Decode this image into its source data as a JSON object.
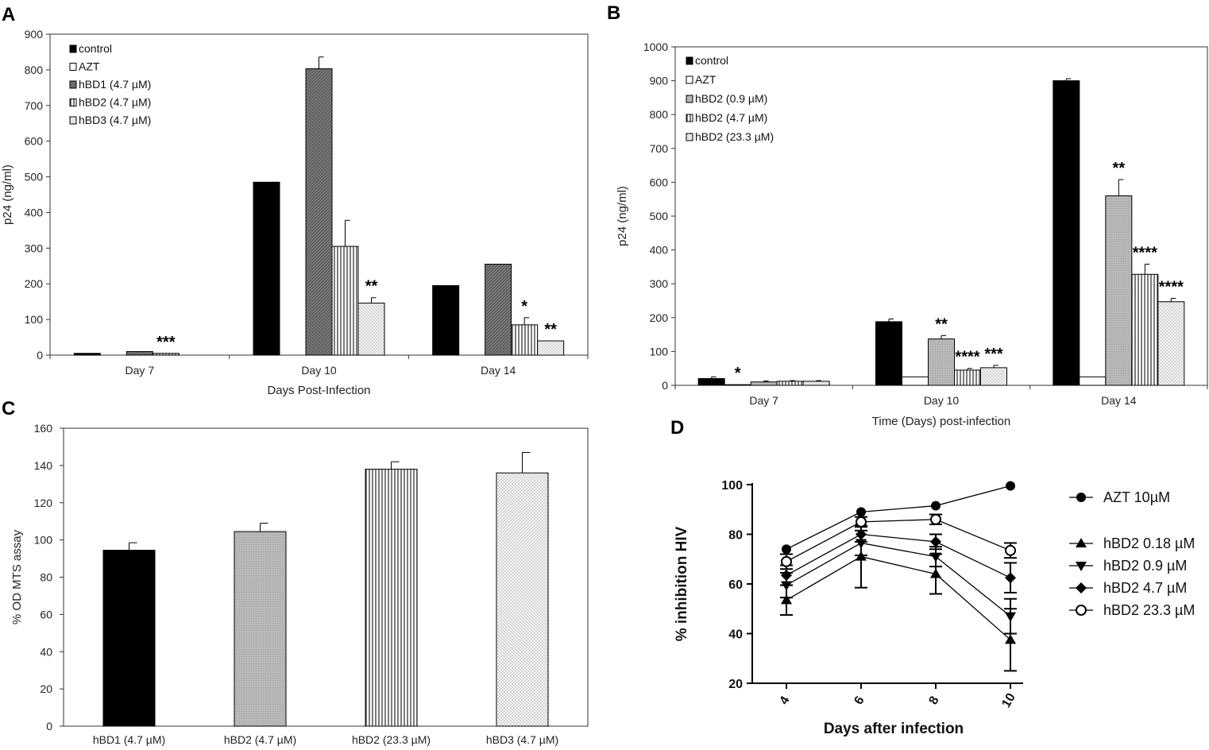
{
  "panels": {
    "A": "A",
    "B": "B",
    "C": "C",
    "D": "D"
  },
  "chart_data": [
    {
      "id": "A",
      "type": "bar",
      "title": "",
      "xlabel": "Days Post-Infection",
      "ylabel": "p24 (ng/ml)",
      "ylim": [
        0,
        900
      ],
      "yticks": [
        0,
        100,
        200,
        300,
        400,
        500,
        600,
        700,
        800,
        900
      ],
      "categories": [
        "Day 7",
        "Day 10",
        "Day 14"
      ],
      "series": [
        {
          "name": "control",
          "values": [
            5,
            485,
            195
          ],
          "errors": [
            0,
            0,
            0
          ],
          "sig": [
            "",
            "",
            ""
          ],
          "pattern": "black"
        },
        {
          "name": "AZT",
          "values": [
            0,
            0,
            0
          ],
          "errors": [
            0,
            0,
            0
          ],
          "sig": [
            "",
            "",
            ""
          ],
          "pattern": "white"
        },
        {
          "name": "hBD1 (4.7 µM)",
          "values": [
            10,
            803,
            255
          ],
          "errors": [
            0,
            33,
            0
          ],
          "sig": [
            "",
            "",
            ""
          ],
          "pattern": "dark"
        },
        {
          "name": "hBD2 (4.7 µM)",
          "values": [
            5,
            305,
            85
          ],
          "errors": [
            0,
            73,
            20
          ],
          "sig": [
            "***",
            "",
            "*"
          ],
          "pattern": "vstripe"
        },
        {
          "name": "hBD3 (4.7 µM)",
          "values": [
            0,
            146,
            40
          ],
          "errors": [
            0,
            15,
            0
          ],
          "sig": [
            "",
            "**",
            "**"
          ],
          "pattern": "dots"
        }
      ]
    },
    {
      "id": "B",
      "type": "bar",
      "title": "",
      "xlabel": "Time  (Days) post-infection",
      "ylabel": "p24 (ng/ml)",
      "ylim": [
        0,
        1000
      ],
      "yticks": [
        0,
        100,
        200,
        300,
        400,
        500,
        600,
        700,
        800,
        900,
        1000
      ],
      "categories": [
        "Day 7",
        "Day 10",
        "Day 14"
      ],
      "series": [
        {
          "name": "control",
          "values": [
            20,
            188,
            900
          ],
          "errors": [
            5,
            8,
            6
          ],
          "sig": [
            "",
            "",
            ""
          ],
          "pattern": "black"
        },
        {
          "name": "AZT",
          "values": [
            2,
            25,
            25
          ],
          "errors": [
            0,
            0,
            0
          ],
          "sig": [
            "*",
            "",
            ""
          ],
          "pattern": "white"
        },
        {
          "name": "hBD2 (0.9 µM)",
          "values": [
            10,
            137,
            560
          ],
          "errors": [
            3,
            10,
            48
          ],
          "sig": [
            "",
            "**",
            "**"
          ],
          "pattern": "gray"
        },
        {
          "name": "hBD2 (4.7 µM)",
          "values": [
            12,
            45,
            328
          ],
          "errors": [
            2,
            5,
            30
          ],
          "sig": [
            "",
            "****",
            "****"
          ],
          "pattern": "vstripe"
        },
        {
          "name": "hBD2 (23.3 µM)",
          "values": [
            12,
            52,
            247
          ],
          "errors": [
            2,
            7,
            10
          ],
          "sig": [
            "",
            "***",
            "****"
          ],
          "pattern": "dots"
        }
      ]
    },
    {
      "id": "C",
      "type": "bar",
      "title": "",
      "xlabel": "",
      "ylabel": "% OD MTS assay",
      "ylim": [
        0,
        160
      ],
      "yticks": [
        0,
        20,
        40,
        60,
        80,
        100,
        120,
        140,
        160
      ],
      "categories": [
        "hBD1 (4.7 µM)",
        "hBD2 (4.7 µM)",
        "hBD2 (23.3 µM)",
        "hBD3 (4.7 µM)"
      ],
      "values": [
        94.5,
        104.5,
        138,
        136
      ],
      "errors": [
        4,
        4.5,
        4,
        11
      ],
      "patterns": [
        "black",
        "gray",
        "vstripe",
        "dots"
      ]
    },
    {
      "id": "D",
      "type": "line",
      "title": "",
      "xlabel": "Days after infection",
      "ylabel": "% inhibition HIV",
      "x": [
        4,
        6,
        8,
        10
      ],
      "ylim": [
        20,
        100
      ],
      "yticks": [
        20,
        40,
        60,
        80,
        100
      ],
      "series": [
        {
          "name": "AZT 10µM",
          "marker": "circle",
          "values": [
            74,
            89,
            91.5,
            99.5
          ],
          "errors": [
            0,
            0,
            0,
            0
          ]
        },
        {
          "name": "hBD2 0.18 µM",
          "marker": "triangle-up",
          "values": [
            53.5,
            71,
            64,
            37.5
          ],
          "errors": [
            6,
            12.5,
            8,
            12.5
          ]
        },
        {
          "name": "hBD2 0.9 µM",
          "marker": "triangle-down",
          "values": [
            59.5,
            76.5,
            71,
            47
          ],
          "errors": [
            5,
            5,
            4,
            7
          ]
        },
        {
          "name": "hBD2 4.7 µM",
          "marker": "diamond",
          "values": [
            63.5,
            80,
            77,
            62.5
          ],
          "errors": [
            4,
            3,
            3,
            6
          ]
        },
        {
          "name": "hBD2 23.3 µM",
          "marker": "circle-open",
          "values": [
            69,
            85,
            86,
            73.5
          ],
          "errors": [
            3,
            2,
            2,
            3
          ]
        }
      ]
    }
  ]
}
